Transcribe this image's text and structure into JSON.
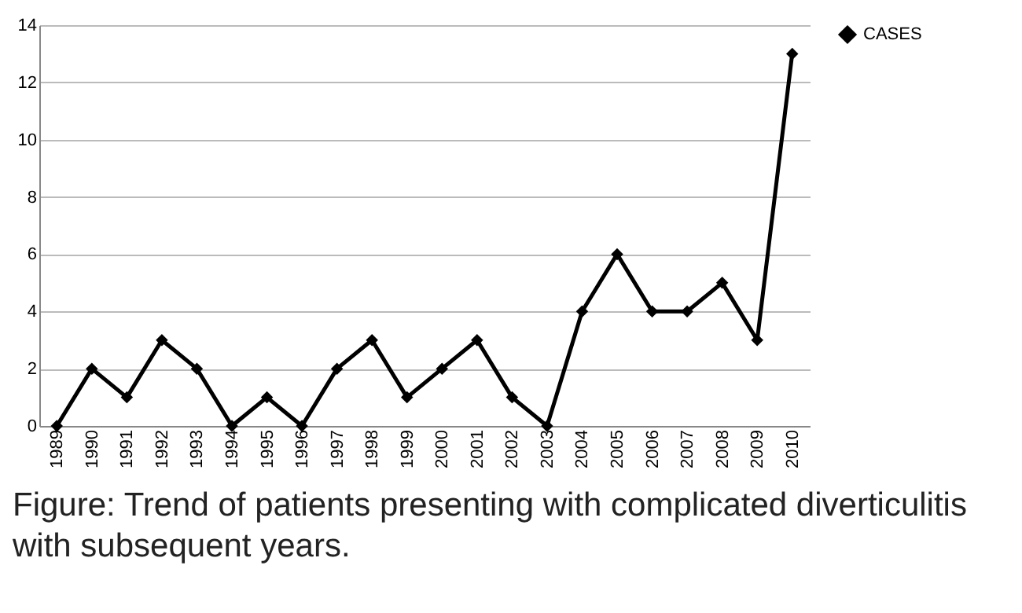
{
  "chart_data": {
    "type": "line",
    "categories": [
      "1989",
      "1990",
      "1991",
      "1992",
      "1993",
      "1994",
      "1995",
      "1996",
      "1997",
      "1998",
      "1999",
      "2000",
      "2001",
      "2002",
      "2003",
      "2004",
      "2005",
      "2006",
      "2007",
      "2008",
      "2009",
      "2010"
    ],
    "series": [
      {
        "name": "CASES",
        "color": "#000000",
        "values": [
          0,
          2,
          1,
          3,
          2,
          0,
          1,
          0,
          2,
          3,
          1,
          2,
          3,
          1,
          0,
          4,
          6,
          4,
          4,
          5,
          3,
          13
        ]
      }
    ],
    "ylim": [
      0,
      14
    ],
    "yticks": [
      0,
      2,
      4,
      6,
      8,
      10,
      12,
      14
    ],
    "grid": "y",
    "legend": "right",
    "marker": "diamond",
    "line_style": "solid",
    "annotations": [
      "Figure: Trend of patients presenting with complicated diverticulitis with subsequent years."
    ]
  }
}
